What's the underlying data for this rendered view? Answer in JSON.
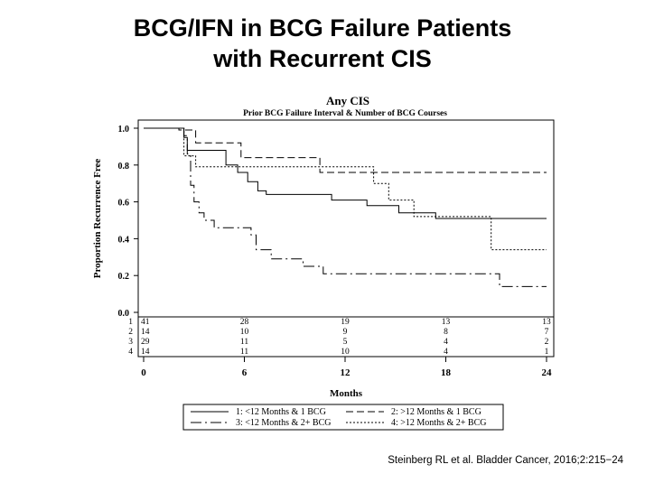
{
  "slide": {
    "title_line1": "BCG/IFN in BCG Failure Patients",
    "title_line2": "with Recurrent CIS",
    "citation": "Steinberg RL et al. Bladder Cancer, 2016;2:215−24"
  },
  "chart_data": {
    "type": "line",
    "title": "Any CIS",
    "subtitle": "Prior BCG Failure Interval & Number of BCG Courses",
    "xlabel": "Months",
    "ylabel": "Proportion Recurrence Free",
    "xlim": [
      0,
      24
    ],
    "ylim": [
      0,
      1.0
    ],
    "xticks": [
      "0",
      "6",
      "12",
      "18",
      "24"
    ],
    "yticks": [
      "0.0",
      "0.2",
      "0.4",
      "0.6",
      "0.8",
      "1.0"
    ],
    "grid": false,
    "step": true,
    "series": [
      {
        "name": "1: <12 Months & 1 BCG",
        "dash": "solid",
        "points": [
          [
            0,
            1.0
          ],
          [
            2.4,
            1.0
          ],
          [
            2.4,
            0.95
          ],
          [
            2.6,
            0.95
          ],
          [
            2.6,
            0.88
          ],
          [
            4.9,
            0.88
          ],
          [
            4.9,
            0.8
          ],
          [
            5.6,
            0.8
          ],
          [
            5.6,
            0.76
          ],
          [
            6.2,
            0.76
          ],
          [
            6.2,
            0.71
          ],
          [
            6.8,
            0.71
          ],
          [
            6.8,
            0.66
          ],
          [
            7.3,
            0.66
          ],
          [
            7.3,
            0.64
          ],
          [
            11.2,
            0.64
          ],
          [
            11.2,
            0.61
          ],
          [
            13.3,
            0.61
          ],
          [
            13.3,
            0.58
          ],
          [
            15.2,
            0.58
          ],
          [
            15.2,
            0.54
          ],
          [
            17.4,
            0.54
          ],
          [
            17.4,
            0.51
          ],
          [
            24,
            0.51
          ]
        ]
      },
      {
        "name": "2: >12 Months & 1 BCG",
        "dash": "8,4",
        "points": [
          [
            0,
            1.0
          ],
          [
            2.1,
            1.0
          ],
          [
            2.1,
            0.99
          ],
          [
            3.1,
            0.99
          ],
          [
            3.1,
            0.92
          ],
          [
            5.8,
            0.92
          ],
          [
            5.8,
            0.84
          ],
          [
            10.5,
            0.84
          ],
          [
            10.5,
            0.76
          ],
          [
            24,
            0.76
          ]
        ]
      },
      {
        "name": "3: <12 Months & 2+ BCG",
        "dash": "12,4,2,4",
        "points": [
          [
            0,
            1.0
          ],
          [
            2.4,
            1.0
          ],
          [
            2.4,
            0.96
          ],
          [
            2.6,
            0.96
          ],
          [
            2.6,
            0.86
          ],
          [
            2.8,
            0.86
          ],
          [
            2.8,
            0.69
          ],
          [
            3.0,
            0.69
          ],
          [
            3.0,
            0.6
          ],
          [
            3.3,
            0.6
          ],
          [
            3.3,
            0.54
          ],
          [
            3.6,
            0.54
          ],
          [
            3.6,
            0.5
          ],
          [
            4.2,
            0.5
          ],
          [
            4.2,
            0.46
          ],
          [
            6.4,
            0.46
          ],
          [
            6.4,
            0.42
          ],
          [
            6.7,
            0.42
          ],
          [
            6.7,
            0.34
          ],
          [
            7.6,
            0.34
          ],
          [
            7.6,
            0.29
          ],
          [
            9.5,
            0.29
          ],
          [
            9.5,
            0.25
          ],
          [
            10.7,
            0.25
          ],
          [
            10.7,
            0.21
          ],
          [
            21.2,
            0.21
          ],
          [
            21.2,
            0.14
          ],
          [
            24,
            0.14
          ]
        ]
      },
      {
        "name": "4: >12 Months & 2+ BCG",
        "dash": "2,2",
        "points": [
          [
            0,
            1.0
          ],
          [
            2.4,
            1.0
          ],
          [
            2.4,
            0.85
          ],
          [
            3.1,
            0.85
          ],
          [
            3.1,
            0.79
          ],
          [
            13.7,
            0.79
          ],
          [
            13.7,
            0.7
          ],
          [
            14.6,
            0.7
          ],
          [
            14.6,
            0.61
          ],
          [
            16.1,
            0.61
          ],
          [
            16.1,
            0.52
          ],
          [
            20.7,
            0.52
          ],
          [
            20.7,
            0.34
          ],
          [
            24,
            0.34
          ]
        ]
      }
    ],
    "at_risk": {
      "labels": [
        "1",
        "2",
        "3",
        "4"
      ],
      "times": [
        0,
        6,
        12,
        18,
        24
      ],
      "rows": [
        [
          "41",
          "28",
          "19",
          "13",
          "13"
        ],
        [
          "14",
          "10",
          "9",
          "8",
          "7"
        ],
        [
          "29",
          "11",
          "5",
          "4",
          "2"
        ],
        [
          "14",
          "11",
          "10",
          "4",
          "1"
        ]
      ]
    },
    "legend_placement": "bottom"
  }
}
